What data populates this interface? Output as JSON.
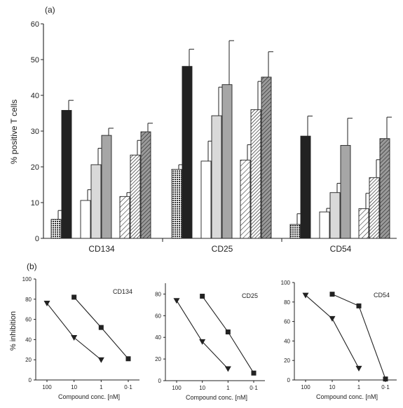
{
  "panel_a": {
    "label": "(a)",
    "chart_data": {
      "type": "bar",
      "ylabel": "% positive T cells",
      "ylim": [
        0,
        60
      ],
      "yticks": [
        0,
        10,
        20,
        30,
        40,
        50,
        60
      ],
      "categories": [
        "CD134",
        "CD25",
        "CD54"
      ],
      "groups": [
        {
          "category": "CD134",
          "bars": [
            {
              "value": 5.3,
              "error": 2.5,
              "fill": "dots"
            },
            {
              "value": 35.8,
              "error": 2.8,
              "fill": "black"
            },
            {
              "value": 10.6,
              "error": 3.0,
              "fill": "white"
            },
            {
              "value": 20.6,
              "error": 4.6,
              "fill": "lightgray"
            },
            {
              "value": 28.8,
              "error": 2.0,
              "fill": "gray"
            },
            {
              "value": 11.7,
              "error": 1.1,
              "fill": "hatch-light"
            },
            {
              "value": 23.3,
              "error": 4.1,
              "fill": "hatch-medium"
            },
            {
              "value": 29.8,
              "error": 2.4,
              "fill": "hatch-dense"
            }
          ]
        },
        {
          "category": "CD25",
          "bars": [
            {
              "value": 19.3,
              "error": 1.3,
              "fill": "dots"
            },
            {
              "value": 48.1,
              "error": 4.8,
              "fill": "black"
            },
            {
              "value": 21.6,
              "error": 5.6,
              "fill": "white"
            },
            {
              "value": 34.3,
              "error": 8.0,
              "fill": "lightgray"
            },
            {
              "value": 43.0,
              "error": 12.3,
              "fill": "gray"
            },
            {
              "value": 21.9,
              "error": 4.3,
              "fill": "hatch-light"
            },
            {
              "value": 36.0,
              "error": 7.9,
              "fill": "hatch-medium"
            },
            {
              "value": 45.1,
              "error": 7.1,
              "fill": "hatch-dense"
            }
          ]
        },
        {
          "category": "CD54",
          "bars": [
            {
              "value": 3.9,
              "error": 3.0,
              "fill": "dots"
            },
            {
              "value": 28.6,
              "error": 5.6,
              "fill": "black"
            },
            {
              "value": 7.4,
              "error": 1.0,
              "fill": "white"
            },
            {
              "value": 12.8,
              "error": 2.6,
              "fill": "lightgray"
            },
            {
              "value": 26.0,
              "error": 7.6,
              "fill": "gray"
            },
            {
              "value": 8.3,
              "error": 4.3,
              "fill": "hatch-light"
            },
            {
              "value": 17.0,
              "error": 5.0,
              "fill": "hatch-medium"
            },
            {
              "value": 27.9,
              "error": 6.0,
              "fill": "hatch-dense"
            }
          ]
        }
      ]
    }
  },
  "panel_b": {
    "label": "(b)",
    "ylabel": "% inhibition",
    "chart_data": [
      {
        "type": "line",
        "title": "CD134",
        "xlabel": "Compound conc. [nM]",
        "x": [
          "100",
          "10",
          "1",
          "0·1"
        ],
        "yticks": [
          0,
          20,
          40,
          60,
          80,
          100
        ],
        "ylim": [
          0,
          100
        ],
        "series": [
          {
            "marker": "square",
            "x": [
              "10",
              "1",
              "0·1"
            ],
            "values": [
              82,
              52,
              21
            ]
          },
          {
            "marker": "triangle-down",
            "x": [
              "100",
              "10",
              "1"
            ],
            "values": [
              76,
              42,
              20
            ]
          }
        ]
      },
      {
        "type": "line",
        "title": "CD25",
        "xlabel": "Compound conc. [nM]",
        "x": [
          "100",
          "10",
          "1",
          "0·1"
        ],
        "yticks": [
          0,
          20,
          40,
          60,
          80
        ],
        "ylim": [
          0,
          90
        ],
        "series": [
          {
            "marker": "square",
            "x": [
              "10",
              "1",
              "0·1"
            ],
            "values": [
              78,
              45,
              7
            ]
          },
          {
            "marker": "triangle-down",
            "x": [
              "100",
              "10",
              "1"
            ],
            "values": [
              74,
              36,
              11
            ]
          }
        ]
      },
      {
        "type": "line",
        "title": "CD54",
        "xlabel": "Compound conc. [nM]",
        "x": [
          "100",
          "10",
          "1",
          "0·1"
        ],
        "yticks": [
          0,
          20,
          40,
          60,
          80,
          100
        ],
        "ylim": [
          0,
          100
        ],
        "series": [
          {
            "marker": "square",
            "x": [
              "10",
              "1",
              "0·1"
            ],
            "values": [
              88,
              76,
              1
            ]
          },
          {
            "marker": "triangle-down",
            "x": [
              "100",
              "10",
              "1"
            ],
            "values": [
              87,
              63,
              12
            ]
          }
        ]
      }
    ]
  }
}
